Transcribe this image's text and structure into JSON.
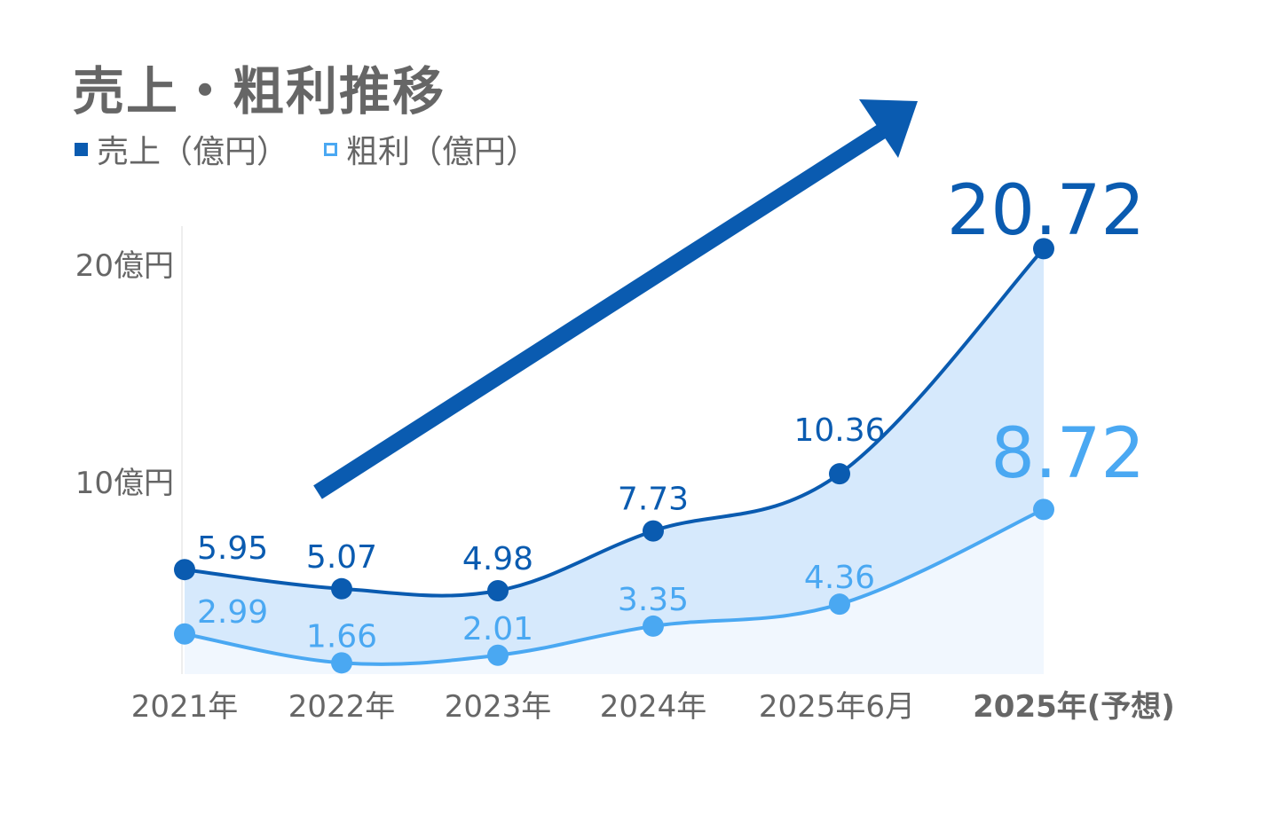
{
  "title": "売上・粗利推移",
  "legend": [
    {
      "label": "売上（億円）",
      "style": "filled"
    },
    {
      "label": "粗利（億円）",
      "style": "hollow"
    }
  ],
  "colors": {
    "sales": "#0a5bb0",
    "profit": "#4aa8f2",
    "axis_text": "#666666",
    "fill": "#d6e9fc"
  },
  "chart_data": {
    "type": "line",
    "title": "売上・粗利推移",
    "categories": [
      "2021年",
      "2022年",
      "2023年",
      "2024年",
      "2025年6月",
      "2025年(予想)"
    ],
    "y_ticks": [
      {
        "value": 10,
        "label": "10億円"
      },
      {
        "value": 20,
        "label": "20億円"
      }
    ],
    "ylim": [
      0,
      22
    ],
    "grid": false,
    "legend_position": "top-left",
    "series": [
      {
        "name": "売上（億円）",
        "values": [
          5.95,
          5.07,
          4.98,
          7.73,
          10.36,
          20.72
        ],
        "labels": [
          "5.95",
          "5.07",
          "4.98",
          "7.73",
          "10.36",
          "20.72"
        ]
      },
      {
        "name": "粗利（億円）",
        "values": [
          2.99,
          1.66,
          2.01,
          3.35,
          4.36,
          8.72
        ],
        "labels": [
          "2.99",
          "1.66",
          "2.01",
          "3.35",
          "4.36",
          "8.72"
        ]
      }
    ],
    "annotation": "upward trend arrow"
  }
}
